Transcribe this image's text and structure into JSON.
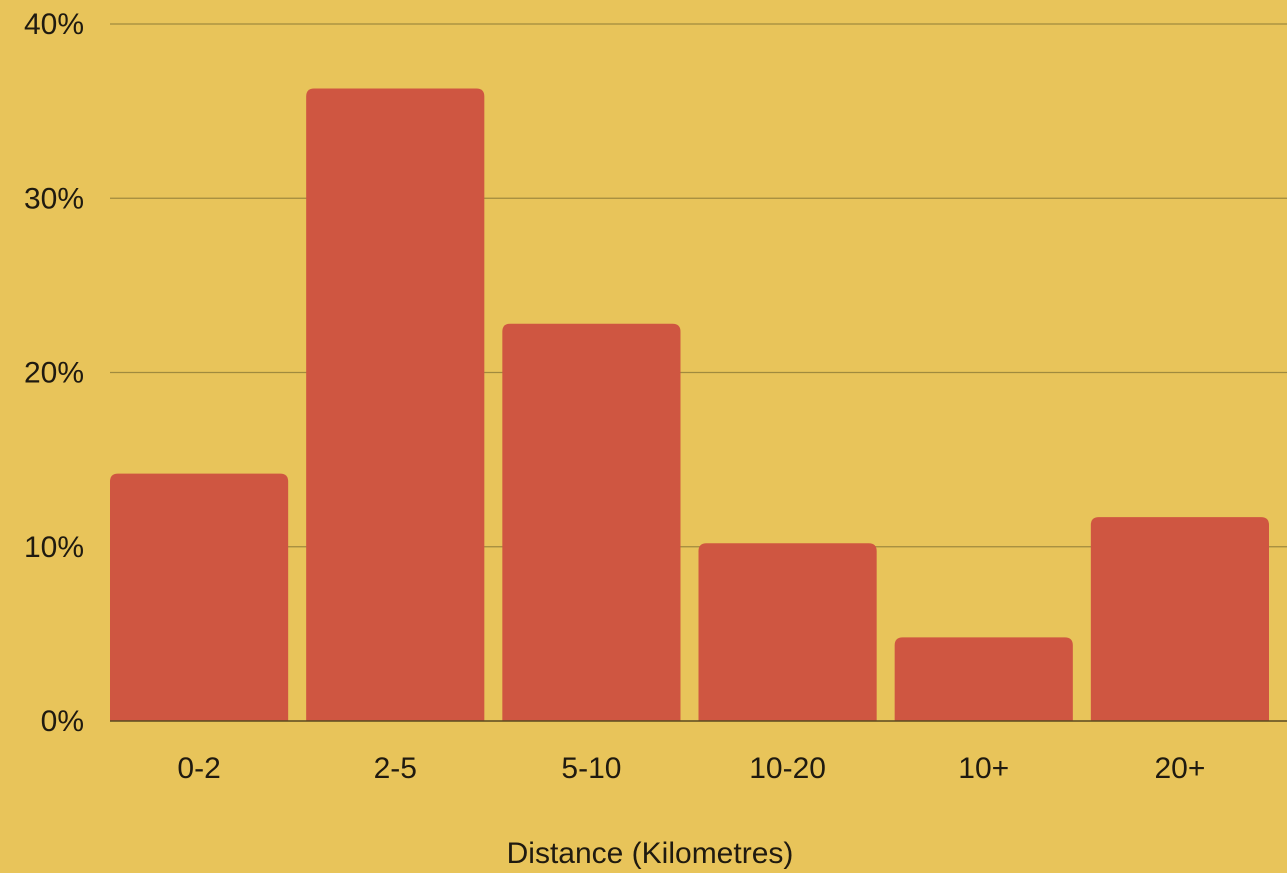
{
  "chart_data": {
    "type": "bar",
    "title": "",
    "xlabel": "Distance (Kilometres)",
    "ylabel": "",
    "categories": [
      "0-2",
      "2-5",
      "5-10",
      "10-20",
      "10+",
      "20+"
    ],
    "values": [
      14.2,
      36.3,
      22.8,
      10.2,
      4.8,
      11.7
    ],
    "ylim": [
      0,
      40
    ],
    "yticks": [
      {
        "value": 0,
        "label": "0%"
      },
      {
        "value": 10,
        "label": "10%"
      },
      {
        "value": 20,
        "label": "20%"
      },
      {
        "value": 30,
        "label": "30%"
      },
      {
        "value": 40,
        "label": "40%"
      }
    ],
    "grid": true,
    "legend": "none"
  },
  "colors": {
    "background": "#E8C45A",
    "bar": "#CF5641",
    "gridline": "#A08A3E",
    "axis": "#5a4a20",
    "text": "#1f1a10"
  }
}
